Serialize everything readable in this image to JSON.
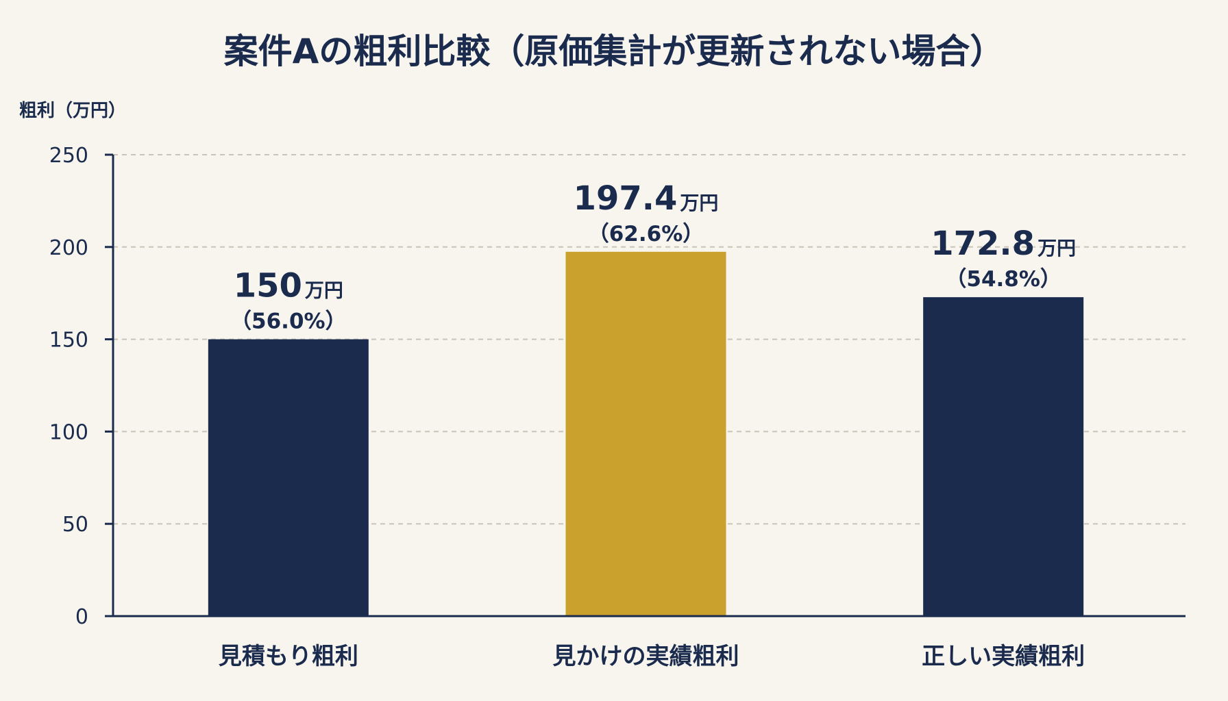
{
  "chart_data": {
    "type": "bar",
    "title": "案件Aの粗利比較（原価集計が更新されない場合）",
    "ylabel": "粗利（万円）",
    "ylim": [
      0,
      250
    ],
    "yticks": [
      0,
      50,
      100,
      150,
      200,
      250
    ],
    "grid": true,
    "unit": "万円",
    "categories": [
      "見積もり粗利",
      "見かけの実績粗利",
      "正しい実績粗利"
    ],
    "values": [
      150,
      197.4,
      172.8
    ],
    "value_labels": [
      "150",
      "197.4",
      "172.8"
    ],
    "percent_labels": [
      "（56.0%）",
      "（62.6%）",
      "（54.8%）"
    ],
    "colors": [
      "#1a2b4e",
      "#cba12e",
      "#1a2b4e"
    ]
  }
}
